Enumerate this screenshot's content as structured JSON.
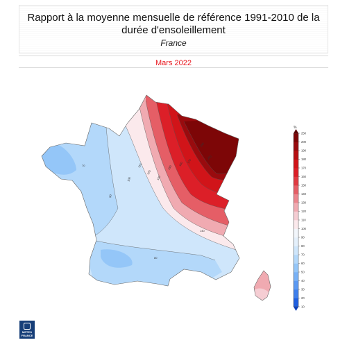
{
  "header": {
    "title": "Rapport à la moyenne mensuelle de référence 1991-2010 de la durée d'ensoleillement",
    "subtitle": "France",
    "period": "Mars 2022"
  },
  "legend": {
    "unit": "%",
    "ticks": [
      "10",
      "20",
      "30",
      "40",
      "50",
      "60",
      "70",
      "80",
      "90",
      "100",
      "110",
      "120",
      "130",
      "140",
      "150",
      "160",
      "170",
      "180",
      "190",
      "200",
      "250"
    ],
    "colors": [
      "#1f5fe0",
      "#3e7fec",
      "#5a99f3",
      "#78b1f6",
      "#94c6f8",
      "#b3d8fa",
      "#cfe6fb",
      "#e4f0fb",
      "#f2f6fb",
      "#fbe9ec",
      "#f5cdd3",
      "#f0aab1",
      "#eb858d",
      "#e55e66",
      "#e03a42",
      "#dc1f28",
      "#d11419",
      "#b70f12",
      "#990b0e",
      "#7d0607"
    ]
  },
  "map": {
    "contour_labels": [
      "110",
      "100",
      "90",
      "120",
      "130",
      "150",
      "160",
      "170",
      "180",
      "200",
      "140",
      "80",
      "70"
    ]
  },
  "logo": {
    "text": "METEO FRANCE"
  }
}
